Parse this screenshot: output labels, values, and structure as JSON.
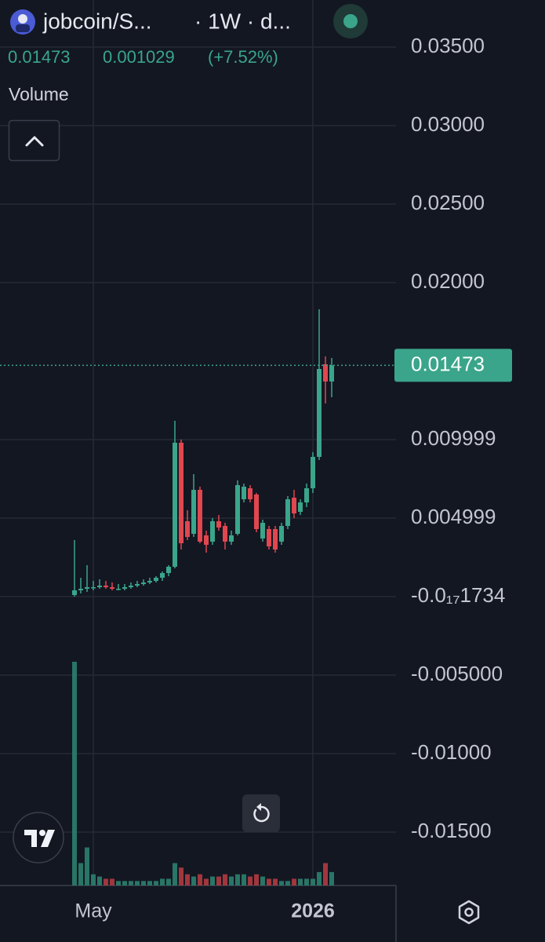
{
  "chart_data": {
    "type": "candlestick",
    "title": "jobcoin/S...",
    "subtitle": "· 1W · d...",
    "legend_values": [
      "0.01473",
      "0.001029",
      "(+7.52%)"
    ],
    "volume_label": "Volume",
    "up_color": "#3aa58a",
    "down_color": "#e0474f",
    "grid": true,
    "ylim": [
      -0.0184,
      0.038
    ],
    "yticks": [
      {
        "value": 0.035,
        "label": "0.03500"
      },
      {
        "value": 0.03,
        "label": "0.03000"
      },
      {
        "value": 0.025,
        "label": "0.02500"
      },
      {
        "value": 0.02,
        "label": "0.02000"
      },
      0.009999,
      0.004999,
      {
        "value": -1.734e-18,
        "label": "-0.0₁₇1734"
      },
      {
        "value": -0.005,
        "label": "-0.005000"
      },
      {
        "value": -0.01,
        "label": "-0.01000"
      },
      {
        "value": -0.015,
        "label": "-0.01500"
      }
    ],
    "last_price": 0.01473,
    "categories": [
      null,
      null,
      null,
      "May",
      null,
      null,
      null,
      null,
      null,
      null,
      null,
      null,
      null,
      null,
      null,
      null,
      null,
      null,
      null,
      null,
      null,
      null,
      null,
      null,
      null,
      null,
      null,
      null,
      null,
      null,
      null,
      null,
      null,
      null,
      null,
      null,
      null,
      null,
      "2026",
      null,
      null,
      null
    ],
    "open": [
      0.0001,
      0.0004,
      0.0005,
      0.0006,
      0.0006,
      0.0007,
      0.0006,
      0.0005,
      0.0005,
      0.0006,
      0.0007,
      0.0008,
      0.0009,
      0.001,
      0.0012,
      0.0015,
      0.0019,
      0.0098,
      0.0048,
      0.004,
      0.0068,
      0.0039,
      0.0035,
      0.0048,
      0.0045,
      0.0035,
      0.004,
      0.0062,
      0.0069,
      0.0065,
      0.0037,
      0.0043,
      0.0043,
      0.0035,
      0.0045,
      0.0063,
      0.0054,
      0.006,
      0.0069,
      0.0089,
      0.0148,
      0.0137
    ],
    "high": [
      0.0036,
      0.0012,
      0.002,
      0.001,
      0.0011,
      0.001,
      0.0009,
      0.0008,
      0.0008,
      0.0009,
      0.001,
      0.0011,
      0.0012,
      0.0013,
      0.0016,
      0.002,
      0.0112,
      0.01,
      0.0055,
      0.0078,
      0.007,
      0.0042,
      0.005,
      0.0052,
      0.0047,
      0.0042,
      0.0074,
      0.0072,
      0.0071,
      0.0066,
      0.0049,
      0.0045,
      0.0045,
      0.0047,
      0.0064,
      0.0068,
      0.0062,
      0.0072,
      0.0092,
      0.0183,
      0.0153,
      0.0152
    ],
    "low": [
      0.0,
      0.0002,
      0.0003,
      0.0004,
      0.0005,
      0.0005,
      0.0004,
      0.0004,
      0.0004,
      0.0005,
      0.0006,
      0.0007,
      0.0008,
      0.0009,
      0.001,
      0.0013,
      0.0018,
      0.003,
      0.0036,
      0.0038,
      0.0034,
      0.0028,
      0.0033,
      0.0042,
      0.003,
      0.0033,
      0.0039,
      0.006,
      0.006,
      0.0041,
      0.0035,
      0.003,
      0.0028,
      0.0033,
      0.0043,
      0.005,
      0.0052,
      0.0057,
      0.0066,
      0.0087,
      0.0123,
      0.0127
    ],
    "close": [
      0.0004,
      0.0005,
      0.0006,
      0.0006,
      0.0007,
      0.0006,
      0.0005,
      0.0005,
      0.0006,
      0.0007,
      0.0008,
      0.0009,
      0.001,
      0.0012,
      0.0015,
      0.0019,
      0.0098,
      0.0034,
      0.0038,
      0.0068,
      0.0035,
      0.0033,
      0.0048,
      0.0044,
      0.0035,
      0.0039,
      0.0071,
      0.007,
      0.0062,
      0.0043,
      0.0047,
      0.0032,
      0.003,
      0.0045,
      0.0062,
      0.0053,
      0.006,
      0.0069,
      0.0089,
      0.0145,
      0.0137,
      0.01473
    ],
    "volume": [
      100,
      10,
      17,
      5,
      4,
      3,
      3,
      2,
      2,
      2,
      2,
      2,
      2,
      2,
      3,
      3,
      10,
      8,
      5,
      4,
      5,
      3,
      4,
      4,
      5,
      4,
      5,
      5,
      4,
      5,
      4,
      3,
      3,
      2,
      2,
      3,
      3,
      3,
      3,
      6,
      10,
      6
    ],
    "volume_lim": [
      0,
      100
    ]
  }
}
